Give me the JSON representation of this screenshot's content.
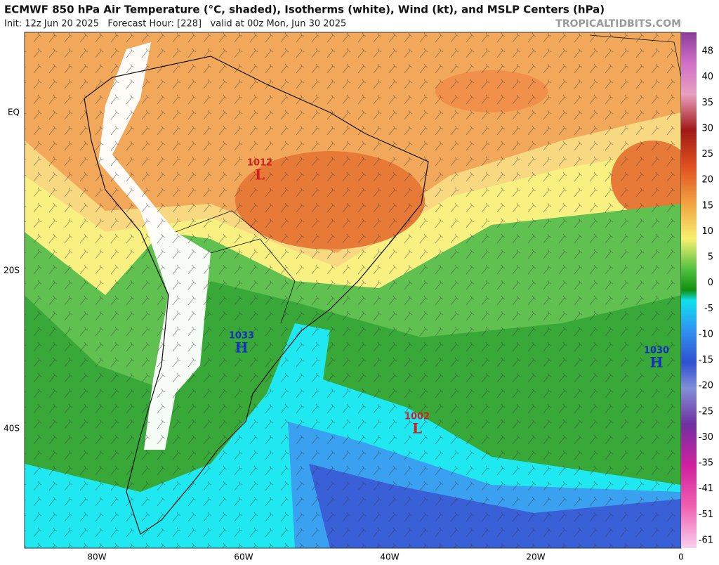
{
  "header": {
    "title": "ECMWF 850 hPa Air Temperature (°C, shaded), Isotherms (white), Wind (kt), and MSLP Centers (hPa)",
    "subtitle": "Init: 12z Jun 20 2025   Forecast Hour: [228]   valid at 00z Mon, Jun 30 2025",
    "watermark": "TROPICALTIDBITS.COM"
  },
  "map": {
    "lat_labels": [
      "EQ",
      "20S",
      "40S"
    ],
    "lon_labels": [
      "80W",
      "60W",
      "40W",
      "20W",
      "0"
    ],
    "centers": [
      {
        "pressure": "1012",
        "type": "L"
      },
      {
        "pressure": "1033",
        "type": "H"
      },
      {
        "pressure": "1030",
        "type": "H"
      },
      {
        "pressure": "1002",
        "type": "L"
      }
    ]
  },
  "colorbar": {
    "labels": [
      "48",
      "40",
      "35",
      "30",
      "25",
      "20",
      "15",
      "10",
      "5",
      "0",
      "-5",
      "-10",
      "-15",
      "-20",
      "-25",
      "-30",
      "-35",
      "-41",
      "-51",
      "-61"
    ]
  }
}
